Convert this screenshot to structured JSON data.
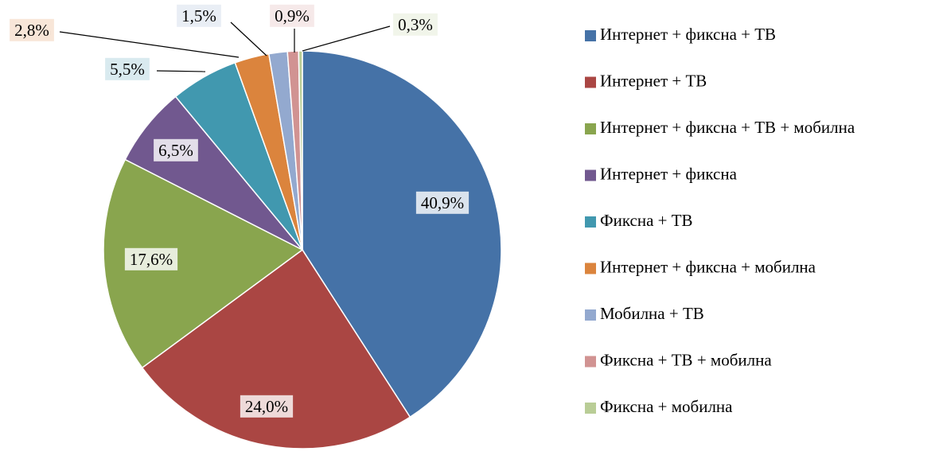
{
  "chart_data": {
    "type": "pie",
    "categories": [
      "Интернет + фиксна + ТВ",
      "Интернет + ТВ",
      "Интернет + фиксна + ТВ + мобилна",
      "Интернет + фиксна",
      "Фиксна + ТВ",
      "Интернет + фиксна + мобилна",
      "Мобилна + ТВ",
      "Фиксна + ТВ + мобилна",
      "Фиксна + мобилна"
    ],
    "values": [
      40.9,
      24.0,
      17.6,
      6.5,
      5.5,
      2.8,
      1.5,
      0.9,
      0.3
    ],
    "value_labels": [
      "40,9%",
      "24,0%",
      "17,6%",
      "6,5%",
      "5,5%",
      "2,8%",
      "1,5%",
      "0,9%",
      "0,3%"
    ],
    "colors": [
      "#4572a7",
      "#aa4643",
      "#89a54e",
      "#71588f",
      "#4198af",
      "#db843d",
      "#93a9cf",
      "#d19392",
      "#b9cd96"
    ],
    "legend": "right"
  }
}
